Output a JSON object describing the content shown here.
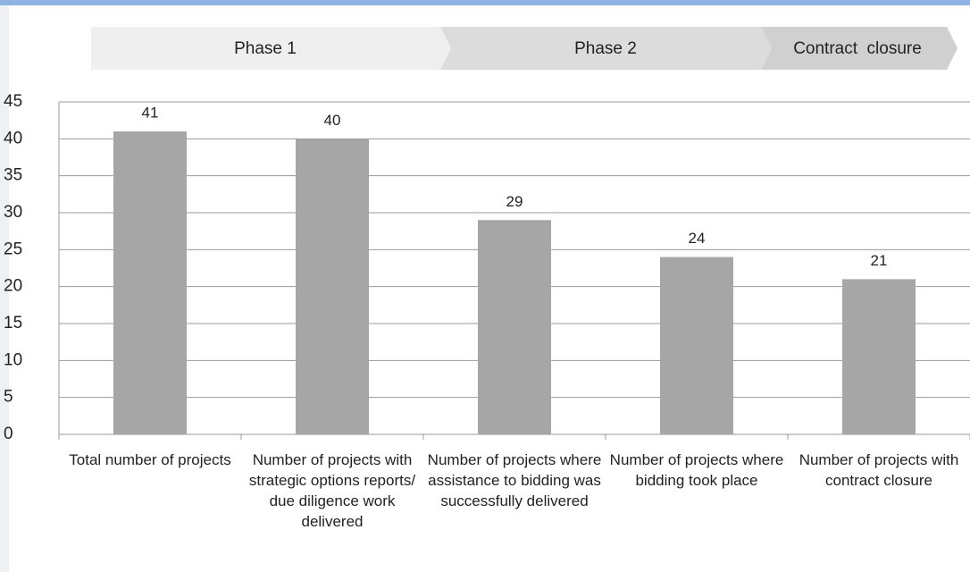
{
  "chart_data": {
    "type": "bar",
    "phases": [
      "Phase 1",
      "Phase 2",
      "Contract  closure"
    ],
    "categories": [
      "Total number of projects",
      "Number of projects with strategic options reports/ due diligence work delivered",
      "Number of projects where assistance to bidding was successfully delivered",
      "Number of projects where bidding took place",
      "Number of projects with contract closure"
    ],
    "values": [
      41,
      40,
      29,
      24,
      21
    ],
    "color": "#a6a6a6",
    "ylim": [
      0,
      45
    ],
    "yticks": [
      0,
      5,
      10,
      15,
      20,
      25,
      30,
      35,
      40,
      45
    ],
    "grid": true
  }
}
